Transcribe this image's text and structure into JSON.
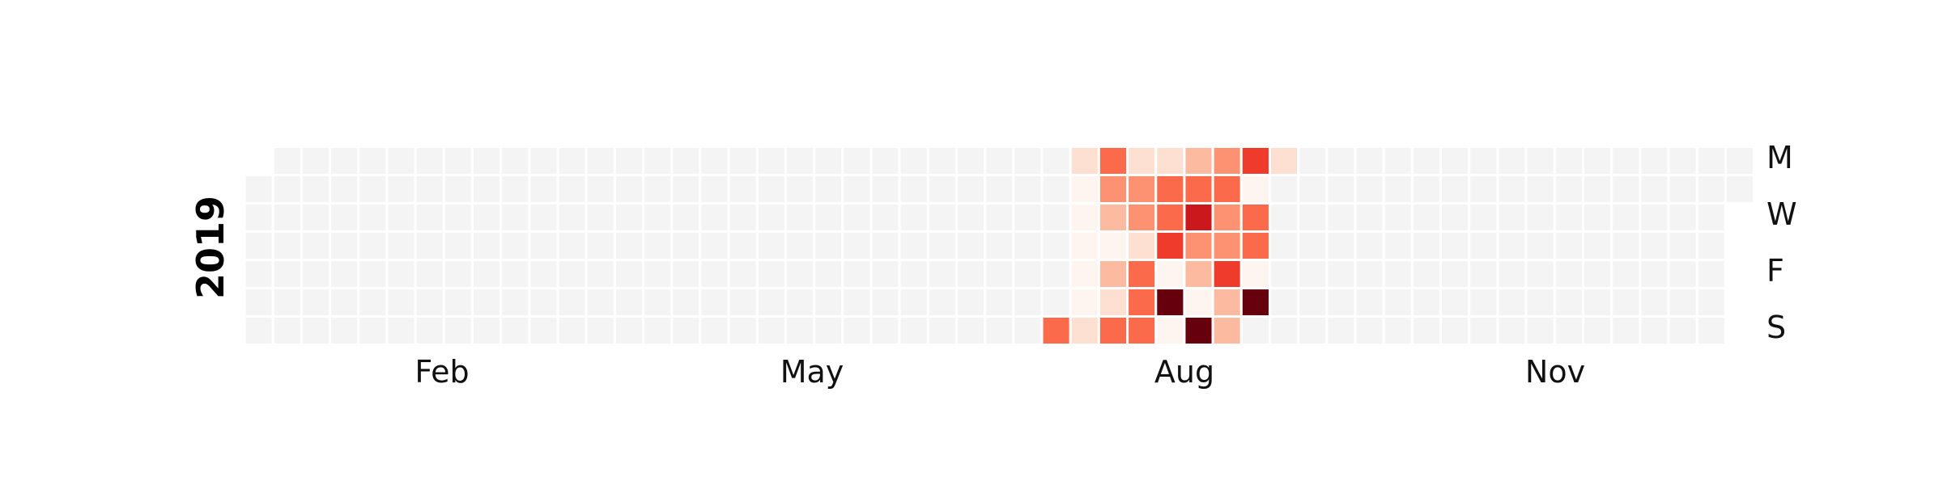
{
  "chart_data": {
    "type": "heatmap",
    "title": "",
    "year": "2019",
    "month_labels": [
      "Feb",
      "May",
      "Aug",
      "Nov"
    ],
    "day_labels": [
      "M",
      "W",
      "F",
      "S"
    ],
    "grid": false,
    "color_scale": [
      "#f4f4f4",
      "#fff5f0",
      "#fee0d2",
      "#fcbba1",
      "#fc9272",
      "#fb6a4a",
      "#ef3b2c",
      "#cb181d",
      "#67000d"
    ],
    "empty_color": "#f4f4f4",
    "date_range": [
      "2019-01-01",
      "2019-12-31"
    ],
    "values": {
      "2019-07-21": 0.55,
      "2019-07-23": 0.05,
      "2019-07-24": 0.05,
      "2019-07-25": 0.05,
      "2019-07-26": 0.05,
      "2019-07-27": 0.05,
      "2019-07-22": 0.2,
      "2019-07-28": 0.15,
      "2019-07-29": 0.55,
      "2019-07-30": 0.45,
      "2019-07-31": 0.3,
      "2019-08-01": 0.05,
      "2019-08-02": 0.3,
      "2019-08-03": 0.15,
      "2019-08-04": 0.6,
      "2019-08-05": 0.15,
      "2019-08-06": 0.4,
      "2019-08-07": 0.45,
      "2019-08-08": 0.1,
      "2019-08-09": 0.6,
      "2019-08-10": 0.6,
      "2019-08-11": 0.6,
      "2019-08-12": 0.2,
      "2019-08-13": 0.6,
      "2019-08-14": 0.5,
      "2019-08-15": 0.75,
      "2019-08-16": 0.05,
      "2019-08-17": 0.95,
      "2019-08-18": 0.05,
      "2019-08-19": 0.35,
      "2019-08-20": 0.55,
      "2019-08-21": 0.8,
      "2019-08-22": 0.45,
      "2019-08-23": 0.3,
      "2019-08-24": 0.05,
      "2019-08-25": 0.95,
      "2019-08-26": 0.4,
      "2019-08-27": 0.6,
      "2019-08-28": 0.4,
      "2019-08-29": 0.4,
      "2019-08-30": 0.7,
      "2019-08-31": 0.25,
      "2019-09-01": 0.3,
      "2019-09-02": 0.65,
      "2019-09-03": 0.05,
      "2019-09-04": 0.6,
      "2019-09-05": 0.5,
      "2019-09-06": 0.05,
      "2019-09-07": 0.95,
      "2019-09-09": 0.1
    }
  }
}
